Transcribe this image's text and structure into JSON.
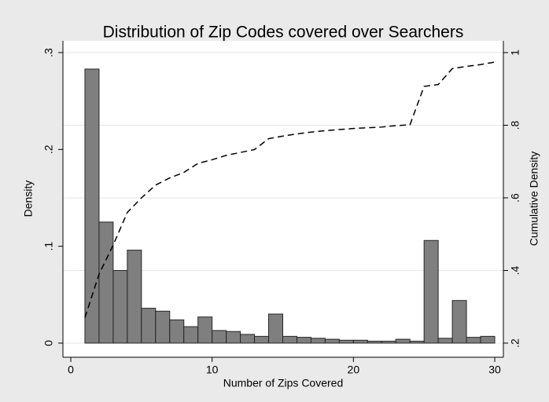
{
  "chart_data": {
    "type": "histogram",
    "title": "Distribution of Zip Codes covered over Searchers",
    "x_label": "Number of Zips Covered",
    "y_label": "Density",
    "y2_label": "Cumulative Density",
    "bins": [
      1,
      2,
      3,
      4,
      5,
      6,
      7,
      8,
      9,
      10,
      11,
      12,
      13,
      14,
      15,
      16,
      17,
      18,
      19,
      20,
      21,
      22,
      23,
      24,
      25,
      26,
      27,
      28,
      29,
      30
    ],
    "values": [
      0.283,
      0.125,
      0.075,
      0.096,
      0.036,
      0.033,
      0.024,
      0.017,
      0.027,
      0.013,
      0.012,
      0.009,
      0.007,
      0.03,
      0.007,
      0.006,
      0.005,
      0.004,
      0.003,
      0.003,
      0.002,
      0.002,
      0.004,
      0.002,
      0.106,
      0.005,
      0.044,
      0.006,
      0.007
    ],
    "color": "#7f7f7f",
    "edge_color": "#262626",
    "cumulative": {
      "x": [
        1,
        2,
        3,
        4,
        5,
        6,
        7,
        8,
        9,
        10,
        11,
        12,
        13,
        14,
        15,
        16,
        17,
        18,
        19,
        20,
        21,
        22,
        23,
        24,
        25,
        26,
        27,
        28,
        29,
        30
      ],
      "values": [
        0.27,
        0.39,
        0.47,
        0.56,
        0.6,
        0.635,
        0.655,
        0.67,
        0.695,
        0.705,
        0.717,
        0.725,
        0.733,
        0.763,
        0.77,
        0.776,
        0.781,
        0.785,
        0.788,
        0.791,
        0.793,
        0.795,
        0.799,
        0.801,
        0.907,
        0.912,
        0.956,
        0.962,
        0.967,
        0.974
      ],
      "axis": "y2",
      "color": "#000000",
      "dashed": true
    },
    "xlim": [
      0,
      30
    ],
    "xticks": [
      0,
      10,
      20,
      30
    ],
    "ylim": [
      0,
      0.3
    ],
    "yticks": [
      0,
      {
        "value": 0.1,
        "label": ".1"
      },
      {
        "value": 0.2,
        "label": ".2"
      },
      {
        "value": 0.3,
        "label": ".3"
      }
    ],
    "y2lim": [
      0.2,
      1
    ],
    "y2ticks": [
      {
        "value": 0.2,
        "label": ".2"
      },
      {
        "value": 0.4,
        "label": ".4"
      },
      {
        "value": 0.6,
        "label": ".6"
      },
      {
        "value": 0.8,
        "label": ".8"
      },
      1
    ],
    "grid": true
  }
}
